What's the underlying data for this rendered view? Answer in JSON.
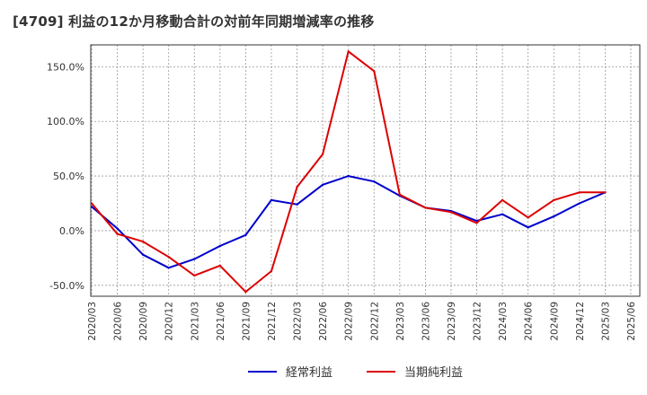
{
  "chart_data": {
    "type": "line",
    "title": "[4709]  利益の12か月移動合計の対前年同期増減率の推移",
    "xlabel": "",
    "ylabel": "",
    "ylim": [
      -60,
      170
    ],
    "grid": true,
    "legend_position": "bottom-center",
    "y_ticks": [
      {
        "value": -50,
        "label": "-50.0%"
      },
      {
        "value": 0,
        "label": "0.0%"
      },
      {
        "value": 50,
        "label": "50.0%"
      },
      {
        "value": 100,
        "label": "100.0%"
      },
      {
        "value": 150,
        "label": "150.0%"
      }
    ],
    "categories": [
      "2020/03",
      "2020/06",
      "2020/09",
      "2020/12",
      "2021/03",
      "2021/06",
      "2021/09",
      "2021/12",
      "2022/03",
      "2022/06",
      "2022/09",
      "2022/12",
      "2023/03",
      "2023/06",
      "2023/09",
      "2023/12",
      "2024/03",
      "2024/06",
      "2024/09",
      "2024/12",
      "2025/03",
      "2025/06"
    ],
    "series": [
      {
        "name": "経常利益",
        "color": "#0000cc",
        "x": [
          "2020/03",
          "2020/06",
          "2020/09",
          "2020/12",
          "2021/03",
          "2021/06",
          "2021/09",
          "2021/12",
          "2022/03",
          "2022/06",
          "2022/09",
          "2022/12",
          "2023/03",
          "2023/06",
          "2023/09",
          "2023/12",
          "2024/03",
          "2024/06",
          "2024/09",
          "2024/12",
          "2025/03"
        ],
        "values": [
          22,
          2,
          -22,
          -34,
          -26,
          -14,
          -4,
          28,
          24,
          42,
          50,
          45,
          32,
          21,
          18,
          9,
          15,
          3,
          13,
          25,
          35
        ]
      },
      {
        "name": "当期純利益",
        "color": "#dd0000",
        "x": [
          "2020/03",
          "2020/06",
          "2020/09",
          "2020/12",
          "2021/03",
          "2021/06",
          "2021/09",
          "2021/12",
          "2022/03",
          "2022/06",
          "2022/09",
          "2022/12",
          "2023/03",
          "2023/06",
          "2023/09",
          "2023/12",
          "2024/03",
          "2024/06",
          "2024/09",
          "2024/12",
          "2025/03"
        ],
        "values": [
          25,
          -3,
          -10,
          -24,
          -41,
          -32,
          -56,
          -37,
          40,
          70,
          164,
          146,
          33,
          21,
          17,
          7,
          28,
          12,
          28,
          35,
          35
        ]
      }
    ]
  }
}
